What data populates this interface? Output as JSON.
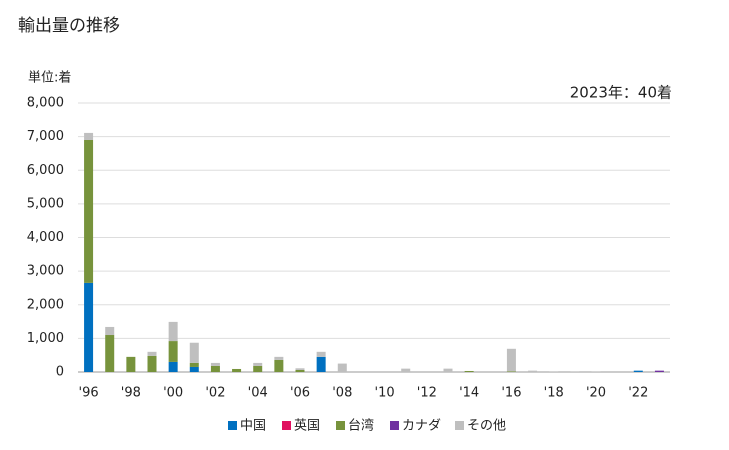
{
  "chart_data": {
    "type": "bar",
    "stacked": true,
    "title": "輸出量の推移",
    "unit_label": "単位:着",
    "annotation": "2023年：40着",
    "categories": [
      "'96",
      null,
      "'98",
      null,
      "'00",
      null,
      "'02",
      null,
      "'04",
      null,
      "'06",
      null,
      "'08",
      null,
      "'10",
      null,
      "'12",
      null,
      "'14",
      null,
      "'16",
      null,
      "'18",
      null,
      "'20",
      null,
      "'22",
      null
    ],
    "series": [
      {
        "name": "中国",
        "color": "#0070c0",
        "values": [
          2650,
          0,
          0,
          0,
          300,
          150,
          0,
          0,
          0,
          0,
          0,
          450,
          0,
          0,
          0,
          0,
          0,
          0,
          0,
          0,
          0,
          0,
          0,
          0,
          0,
          0,
          40,
          0
        ]
      },
      {
        "name": "英国",
        "color": "#e0115f",
        "values": [
          0,
          0,
          0,
          0,
          0,
          0,
          0,
          0,
          0,
          0,
          0,
          0,
          0,
          0,
          0,
          0,
          0,
          0,
          0,
          0,
          0,
          0,
          0,
          0,
          0,
          0,
          0,
          0
        ]
      },
      {
        "name": "台湾",
        "color": "#77933c",
        "values": [
          4250,
          1100,
          450,
          480,
          620,
          120,
          180,
          90,
          180,
          360,
          60,
          0,
          0,
          0,
          0,
          0,
          0,
          0,
          30,
          0,
          20,
          0,
          0,
          0,
          0,
          0,
          0,
          0
        ]
      },
      {
        "name": "カナダ",
        "color": "#7030a0",
        "values": [
          0,
          0,
          0,
          0,
          0,
          0,
          0,
          0,
          0,
          0,
          0,
          0,
          0,
          0,
          0,
          0,
          0,
          0,
          0,
          0,
          0,
          0,
          0,
          0,
          0,
          0,
          0,
          40
        ]
      },
      {
        "name": "その他",
        "color": "#bfbfbf",
        "values": [
          210,
          240,
          0,
          120,
          570,
          600,
          90,
          0,
          90,
          90,
          50,
          150,
          250,
          0,
          0,
          100,
          0,
          100,
          0,
          0,
          670,
          40,
          20,
          20,
          20,
          0,
          0,
          0
        ]
      }
    ],
    "ylim": [
      0,
      8000
    ],
    "yticks": [
      0,
      {
        "value": 1000,
        "label": "1,000"
      },
      {
        "value": 2000,
        "label": "2,000"
      },
      {
        "value": 3000,
        "label": "3,000"
      },
      {
        "value": 4000,
        "label": "4,000"
      },
      {
        "value": 5000,
        "label": "5,000"
      },
      {
        "value": 6000,
        "label": "6,000"
      },
      {
        "value": 7000,
        "label": "7,000"
      },
      {
        "value": 8000,
        "label": "8,000"
      }
    ],
    "grid": true
  }
}
